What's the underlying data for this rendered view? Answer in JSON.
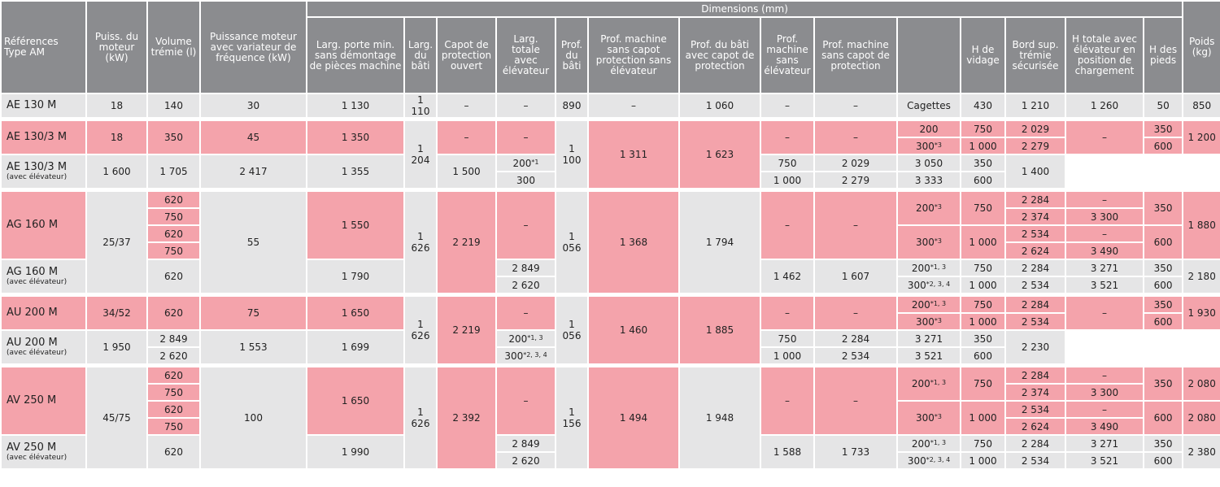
{
  "headers": {
    "ref": "Références Type AM",
    "puiss": "Puiss. du moteur (kW)",
    "volume": "Volume trémie (l)",
    "puiss_var": "Puissance moteur avec variateur de fréquence (kW)",
    "dimensions": "Dimensions (mm)",
    "larg_porte": "Larg. porte min. sans démontage de pièces machine",
    "larg_bati": "Larg. du bâti",
    "capot": "Capot de protection ouvert",
    "larg_totale": "Larg. totale avec élévateur",
    "prof_bati": "Prof. du bâti",
    "prof_sans_capot": "Prof. machine sans capot protection sans élévateur",
    "prof_bati_capot": "Prof. du bâti avec capot de protection",
    "prof_sans_elev": "Prof. machine sans élévateur",
    "prof_sans_capot2": "Prof. machine sans capot de protection",
    "col_blank": "",
    "h_vidage": "H de vidage",
    "bord": "Bord sup. trémie sécurisée",
    "h_totale": "H totale avec élévateur en position de chargement",
    "h_pieds": "H des pieds",
    "poids": "Poids (kg)"
  },
  "sub_label": "(avec élévateur)",
  "dash": "–",
  "ae130m": {
    "ref": "AE 130 M",
    "puiss": "18",
    "volume": "140",
    "puiss_var": "30",
    "larg_porte": "1 130",
    "larg_bati": "1 110",
    "capot": "–",
    "larg_totale": "–",
    "prof_bati": "890",
    "prof_sans_capot": "–",
    "prof_bati_capot": "1 060",
    "prof_sans_elev": "–",
    "prof_sans_capot2": "–",
    "type": "Cagettes",
    "h_vidage": "430",
    "bord": "1 210",
    "h_totale": "1 260",
    "h_pieds": "50",
    "poids": "850"
  },
  "ae130_3m": {
    "ref": "AE 130/3 M",
    "ref2": "AE 130/3 M",
    "puiss": "18",
    "volume": "350",
    "puiss_var": "45",
    "larg_porte": "1 350",
    "larg_porte2": "1 600",
    "larg_bati": "1 204",
    "capot": "–",
    "capot2": "1 705",
    "larg_totale": "–",
    "larg_totale2": "2 417",
    "prof_bati": "1 100",
    "prof_sans_capot": "1 311",
    "prof_bati_capot": "1 623",
    "prof_sans_elev": "–",
    "prof_sans_elev2": "1 355",
    "prof_sans_capot2": "–",
    "prof_sans_capot2b": "1 500",
    "rows": [
      {
        "type": "200",
        "sup": "",
        "h_vidage": "750",
        "bord": "2 029",
        "h_pieds": "350"
      },
      {
        "type": "300",
        "sup": "*3",
        "h_vidage": "1 000",
        "bord": "2 279",
        "h_pieds": "600"
      },
      {
        "type": "200",
        "sup": "*1",
        "h_vidage": "750",
        "bord": "2 029",
        "h_totale": "3 050",
        "h_pieds": "350"
      },
      {
        "type": "300",
        "sup": "",
        "h_vidage": "1 000",
        "bord": "2 279",
        "h_totale": "3 333",
        "h_pieds": "600"
      }
    ],
    "h_totale_top": "–",
    "poids": "1 200",
    "poids2": "1 400"
  },
  "ag160m": {
    "ref": "AG 160 M",
    "ref2": "AG 160 M",
    "puiss": "25/37",
    "volumes": [
      "620",
      "750",
      "620",
      "750"
    ],
    "volume2": "620",
    "puiss_var": "55",
    "larg_porte": "1 550",
    "larg_porte2": "1 790",
    "larg_bati": "1 626",
    "capot": "2 219",
    "larg_totale": "–",
    "larg_totale2a": "2 849",
    "larg_totale2b": "2 620",
    "prof_bati": "1 056",
    "prof_sans_capot": "1 368",
    "prof_bati_capot": "1 794",
    "prof_sans_elev": "–",
    "prof_sans_elev2": "1 462",
    "prof_sans_capot2": "–",
    "prof_sans_capot2b": "1 607",
    "t200": "200",
    "t200sup": "*3",
    "t300": "300",
    "t300sup": "*3",
    "hv200": "750",
    "hv300": "1 000",
    "bords": [
      "2 284",
      "2 374",
      "2 534",
      "2 624"
    ],
    "htot": [
      "–",
      "3 300",
      "–",
      "3 490"
    ],
    "hp200": "350",
    "hp300": "600",
    "poids": "1 880",
    "rows2": [
      {
        "type": "200",
        "sup": "*1, 3",
        "h_vidage": "750",
        "bord": "2 284",
        "h_totale": "3 271",
        "h_pieds": "350"
      },
      {
        "type": "300",
        "sup": "*2, 3, 4",
        "h_vidage": "1 000",
        "bord": "2 534",
        "h_totale": "3 521",
        "h_pieds": "600"
      }
    ],
    "poids2": "2 180"
  },
  "au200m": {
    "ref": "AU 200 M",
    "ref2": "AU 200 M",
    "puiss": "34/52",
    "volume": "620",
    "puiss_var": "75",
    "larg_porte": "1 650",
    "larg_porte2": "1 950",
    "larg_bati": "1 626",
    "capot": "2 219",
    "larg_totale": "–",
    "larg_totale2a": "2 849",
    "larg_totale2b": "2 620",
    "prof_bati": "1 056",
    "prof_sans_capot": "1 460",
    "prof_bati_capot": "1 885",
    "prof_sans_elev": "–",
    "prof_sans_elev2": "1 553",
    "prof_sans_capot2": "–",
    "prof_sans_capot2b": "1 699",
    "rows": [
      {
        "type": "200",
        "sup": "*1, 3",
        "h_vidage": "750",
        "bord": "2 284",
        "h_pieds": "350"
      },
      {
        "type": "300",
        "sup": "*3",
        "h_vidage": "1 000",
        "bord": "2 534",
        "h_pieds": "600"
      },
      {
        "type": "200",
        "sup": "*1, 3",
        "h_vidage": "750",
        "bord": "2 284",
        "h_totale": "3 271",
        "h_pieds": "350"
      },
      {
        "type": "300",
        "sup": "*2, 3, 4",
        "h_vidage": "1 000",
        "bord": "2 534",
        "h_totale": "3 521",
        "h_pieds": "600"
      }
    ],
    "h_totale_top": "–",
    "poids": "1 930",
    "poids2": "2 230"
  },
  "av250m": {
    "ref": "AV 250 M",
    "ref2": "AV 250 M",
    "puiss": "45/75",
    "volumes": [
      "620",
      "750",
      "620",
      "750"
    ],
    "volume2": "620",
    "puiss_var": "100",
    "larg_porte": "1 650",
    "larg_porte2": "1 990",
    "larg_bati": "1 626",
    "capot": "2 392",
    "larg_totale": "–",
    "larg_totale2a": "2 849",
    "larg_totale2b": "2 620",
    "prof_bati": "1 156",
    "prof_sans_capot": "1 494",
    "prof_bati_capot": "1 948",
    "prof_sans_elev": "–",
    "prof_sans_elev2": "1 588",
    "prof_sans_capot2": "–",
    "prof_sans_capot2b": "1 733",
    "t200": "200",
    "t200sup": "*1, 3",
    "t300": "300",
    "t300sup": "*3",
    "hv200": "750",
    "hv300": "1 000",
    "bords": [
      "2 284",
      "2 374",
      "2 534",
      "2 624"
    ],
    "htot": [
      "–",
      "3 300",
      "–",
      "3 490"
    ],
    "hp200": "350",
    "hp300": "600",
    "poids200": "2 080",
    "poids300": "2 080",
    "rows2": [
      {
        "type": "200",
        "sup": "*1, 3",
        "h_vidage": "750",
        "bord": "2 284",
        "h_totale": "3 271",
        "h_pieds": "350"
      },
      {
        "type": "300",
        "sup": "*2, 3, 4",
        "h_vidage": "1 000",
        "bord": "2 534",
        "h_totale": "3 521",
        "h_pieds": "600"
      }
    ],
    "poids2": "2 380"
  },
  "colors": {
    "header": "#8b8c8f",
    "grey_cell": "#e5e5e6",
    "pink_cell": "#f4a3ab"
  }
}
